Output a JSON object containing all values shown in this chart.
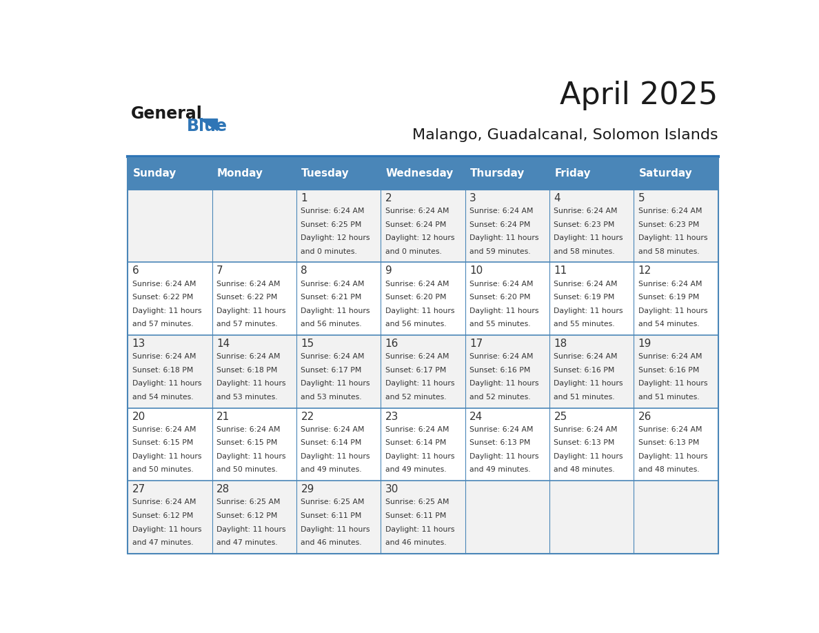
{
  "title": "April 2025",
  "subtitle": "Malango, Guadalcanal, Solomon Islands",
  "header_bg_color": "#4a86b8",
  "header_text_color": "#ffffff",
  "cell_bg_light": "#f2f2f2",
  "cell_bg_white": "#ffffff",
  "day_names": [
    "Sunday",
    "Monday",
    "Tuesday",
    "Wednesday",
    "Thursday",
    "Friday",
    "Saturday"
  ],
  "border_color": "#4a86b8",
  "text_color": "#333333",
  "logo_general_color": "#1a1a1a",
  "logo_blue_color": "#2e75b6",
  "separator_color": "#2e75b6",
  "days": [
    {
      "day": 1,
      "col": 2,
      "row": 0,
      "sunrise": "6:24 AM",
      "sunset": "6:25 PM",
      "daylight_hours": 12,
      "daylight_minutes": 0
    },
    {
      "day": 2,
      "col": 3,
      "row": 0,
      "sunrise": "6:24 AM",
      "sunset": "6:24 PM",
      "daylight_hours": 12,
      "daylight_minutes": 0
    },
    {
      "day": 3,
      "col": 4,
      "row": 0,
      "sunrise": "6:24 AM",
      "sunset": "6:24 PM",
      "daylight_hours": 11,
      "daylight_minutes": 59
    },
    {
      "day": 4,
      "col": 5,
      "row": 0,
      "sunrise": "6:24 AM",
      "sunset": "6:23 PM",
      "daylight_hours": 11,
      "daylight_minutes": 58
    },
    {
      "day": 5,
      "col": 6,
      "row": 0,
      "sunrise": "6:24 AM",
      "sunset": "6:23 PM",
      "daylight_hours": 11,
      "daylight_minutes": 58
    },
    {
      "day": 6,
      "col": 0,
      "row": 1,
      "sunrise": "6:24 AM",
      "sunset": "6:22 PM",
      "daylight_hours": 11,
      "daylight_minutes": 57
    },
    {
      "day": 7,
      "col": 1,
      "row": 1,
      "sunrise": "6:24 AM",
      "sunset": "6:22 PM",
      "daylight_hours": 11,
      "daylight_minutes": 57
    },
    {
      "day": 8,
      "col": 2,
      "row": 1,
      "sunrise": "6:24 AM",
      "sunset": "6:21 PM",
      "daylight_hours": 11,
      "daylight_minutes": 56
    },
    {
      "day": 9,
      "col": 3,
      "row": 1,
      "sunrise": "6:24 AM",
      "sunset": "6:20 PM",
      "daylight_hours": 11,
      "daylight_minutes": 56
    },
    {
      "day": 10,
      "col": 4,
      "row": 1,
      "sunrise": "6:24 AM",
      "sunset": "6:20 PM",
      "daylight_hours": 11,
      "daylight_minutes": 55
    },
    {
      "day": 11,
      "col": 5,
      "row": 1,
      "sunrise": "6:24 AM",
      "sunset": "6:19 PM",
      "daylight_hours": 11,
      "daylight_minutes": 55
    },
    {
      "day": 12,
      "col": 6,
      "row": 1,
      "sunrise": "6:24 AM",
      "sunset": "6:19 PM",
      "daylight_hours": 11,
      "daylight_minutes": 54
    },
    {
      "day": 13,
      "col": 0,
      "row": 2,
      "sunrise": "6:24 AM",
      "sunset": "6:18 PM",
      "daylight_hours": 11,
      "daylight_minutes": 54
    },
    {
      "day": 14,
      "col": 1,
      "row": 2,
      "sunrise": "6:24 AM",
      "sunset": "6:18 PM",
      "daylight_hours": 11,
      "daylight_minutes": 53
    },
    {
      "day": 15,
      "col": 2,
      "row": 2,
      "sunrise": "6:24 AM",
      "sunset": "6:17 PM",
      "daylight_hours": 11,
      "daylight_minutes": 53
    },
    {
      "day": 16,
      "col": 3,
      "row": 2,
      "sunrise": "6:24 AM",
      "sunset": "6:17 PM",
      "daylight_hours": 11,
      "daylight_minutes": 52
    },
    {
      "day": 17,
      "col": 4,
      "row": 2,
      "sunrise": "6:24 AM",
      "sunset": "6:16 PM",
      "daylight_hours": 11,
      "daylight_minutes": 52
    },
    {
      "day": 18,
      "col": 5,
      "row": 2,
      "sunrise": "6:24 AM",
      "sunset": "6:16 PM",
      "daylight_hours": 11,
      "daylight_minutes": 51
    },
    {
      "day": 19,
      "col": 6,
      "row": 2,
      "sunrise": "6:24 AM",
      "sunset": "6:16 PM",
      "daylight_hours": 11,
      "daylight_minutes": 51
    },
    {
      "day": 20,
      "col": 0,
      "row": 3,
      "sunrise": "6:24 AM",
      "sunset": "6:15 PM",
      "daylight_hours": 11,
      "daylight_minutes": 50
    },
    {
      "day": 21,
      "col": 1,
      "row": 3,
      "sunrise": "6:24 AM",
      "sunset": "6:15 PM",
      "daylight_hours": 11,
      "daylight_minutes": 50
    },
    {
      "day": 22,
      "col": 2,
      "row": 3,
      "sunrise": "6:24 AM",
      "sunset": "6:14 PM",
      "daylight_hours": 11,
      "daylight_minutes": 49
    },
    {
      "day": 23,
      "col": 3,
      "row": 3,
      "sunrise": "6:24 AM",
      "sunset": "6:14 PM",
      "daylight_hours": 11,
      "daylight_minutes": 49
    },
    {
      "day": 24,
      "col": 4,
      "row": 3,
      "sunrise": "6:24 AM",
      "sunset": "6:13 PM",
      "daylight_hours": 11,
      "daylight_minutes": 49
    },
    {
      "day": 25,
      "col": 5,
      "row": 3,
      "sunrise": "6:24 AM",
      "sunset": "6:13 PM",
      "daylight_hours": 11,
      "daylight_minutes": 48
    },
    {
      "day": 26,
      "col": 6,
      "row": 3,
      "sunrise": "6:24 AM",
      "sunset": "6:13 PM",
      "daylight_hours": 11,
      "daylight_minutes": 48
    },
    {
      "day": 27,
      "col": 0,
      "row": 4,
      "sunrise": "6:24 AM",
      "sunset": "6:12 PM",
      "daylight_hours": 11,
      "daylight_minutes": 47
    },
    {
      "day": 28,
      "col": 1,
      "row": 4,
      "sunrise": "6:25 AM",
      "sunset": "6:12 PM",
      "daylight_hours": 11,
      "daylight_minutes": 47
    },
    {
      "day": 29,
      "col": 2,
      "row": 4,
      "sunrise": "6:25 AM",
      "sunset": "6:11 PM",
      "daylight_hours": 11,
      "daylight_minutes": 46
    },
    {
      "day": 30,
      "col": 3,
      "row": 4,
      "sunrise": "6:25 AM",
      "sunset": "6:11 PM",
      "daylight_hours": 11,
      "daylight_minutes": 46
    }
  ]
}
